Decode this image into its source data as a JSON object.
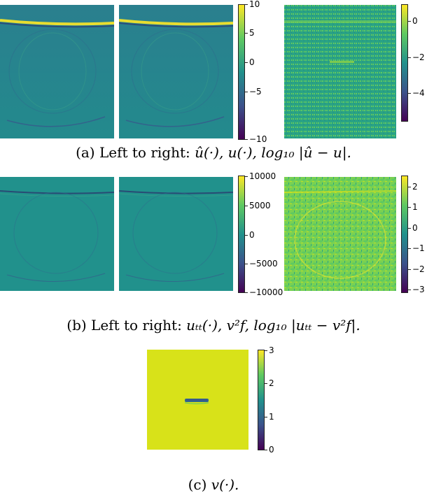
{
  "figure_a": {
    "colorbar_left_ticks": [
      "10",
      "5",
      "0",
      "−5",
      "−10"
    ],
    "colorbar_right_ticks": [
      "0",
      "−2",
      "−4"
    ],
    "caption_prefix": "(a) Left to right: ",
    "caption_math": "û(·), u(·), log₁₀ |û − u|."
  },
  "figure_b": {
    "colorbar_left_ticks": [
      "10000",
      "5000",
      "0",
      "−5000",
      "−10000"
    ],
    "colorbar_right_ticks": [
      "2",
      "1",
      "0",
      "−1",
      "−2",
      "−3"
    ],
    "caption_prefix": "(b) Left to right: ",
    "caption_math": "uₜₜ(·), v²f, log₁₀ |uₜₜ − v²f|."
  },
  "figure_c": {
    "colorbar_ticks": [
      "3",
      "2",
      "1",
      "0"
    ],
    "caption_prefix": "(c) ",
    "caption_math": "v(·)."
  },
  "colors": {
    "viridis_dark": "#440154",
    "viridis_blue": "#3b528b",
    "viridis_teal": "#21918c",
    "viridis_green": "#5ec962",
    "viridis_yellow": "#fde725",
    "panel_background_teal": "#21918c",
    "velocity_background": "#d8e219"
  }
}
